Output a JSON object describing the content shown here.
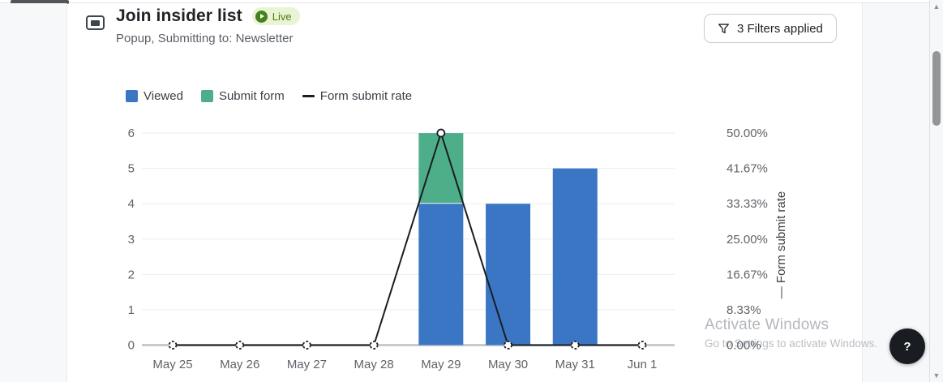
{
  "header": {
    "title": "Join insider list",
    "live_badge_label": "Live",
    "subtitle": "Popup, Submitting to: Newsletter",
    "filters_button_label": "3 Filters applied"
  },
  "legend": {
    "viewed": "Viewed",
    "submit_form": "Submit form",
    "form_submit_rate": "Form submit rate"
  },
  "chart_data": {
    "type": "bar",
    "subtype": "stacked-bars-with-line-overlay",
    "categories": [
      "May 25",
      "May 26",
      "May 27",
      "May 28",
      "May 29",
      "May 30",
      "May 31",
      "Jun 1"
    ],
    "series": [
      {
        "name": "Viewed",
        "type": "bar",
        "axis": "left",
        "color": "#3b76c4",
        "values": [
          0,
          0,
          0,
          0,
          4,
          4,
          5,
          0
        ]
      },
      {
        "name": "Submit form",
        "type": "bar",
        "axis": "left",
        "stacked_on": "Viewed",
        "color": "#4fae8a",
        "values": [
          0,
          0,
          0,
          0,
          2,
          0,
          0,
          0
        ]
      },
      {
        "name": "Form submit rate",
        "type": "line",
        "axis": "right",
        "color": "#1a1d21",
        "values_percent": [
          0,
          0,
          0,
          0,
          50,
          0,
          0,
          0
        ]
      }
    ],
    "left_axis": {
      "range": [
        0,
        6
      ],
      "ticks": [
        "0",
        "1",
        "2",
        "3",
        "4",
        "5",
        "6"
      ]
    },
    "right_axis": {
      "range_percent": [
        0,
        50
      ],
      "tick_labels": [
        "0.00%",
        "8.33%",
        "16.67%",
        "25.00%",
        "33.33%",
        "41.67%",
        "50.00%"
      ],
      "title_prefix": "—",
      "title": "Form submit rate"
    },
    "grid": true,
    "legend_position": "top-left"
  },
  "watermark": {
    "line1": "Activate Windows",
    "line2": "Go to Settings to activate Windows."
  },
  "help_button_label": "?",
  "colors": {
    "bar_viewed": "#3b76c4",
    "bar_submit": "#4fae8a",
    "line_rate": "#1a1d21",
    "live_badge_bg": "#e9f4d5",
    "live_badge_text": "#4d7c0f"
  }
}
